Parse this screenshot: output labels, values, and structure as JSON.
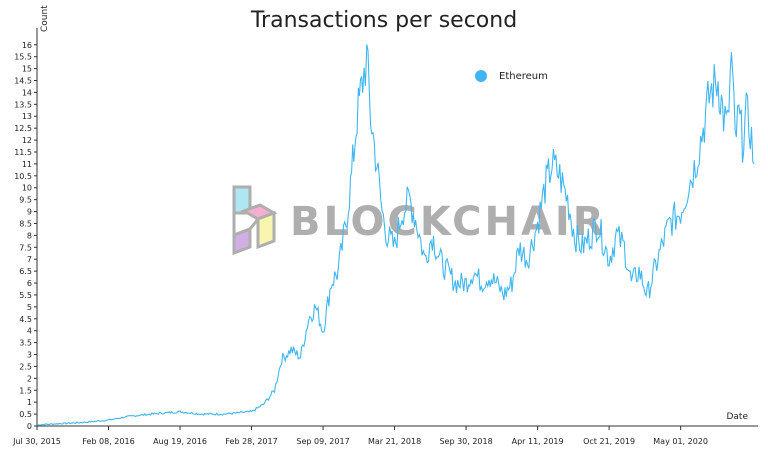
{
  "chart_data": {
    "type": "line",
    "title": "Transactions per second",
    "ylabel": "Count",
    "xlabel": "Date",
    "ylim": [
      0,
      16.2
    ],
    "y_ticks": [
      "0",
      "0.5",
      "1",
      "1.5",
      "2",
      "2.5",
      "3",
      "3.5",
      "4",
      "4.5",
      "5",
      "5.5",
      "6",
      "6.5",
      "7",
      "7.5",
      "8",
      "8.5",
      "9",
      "9.5",
      "10",
      "10.5",
      "11",
      "11.5",
      "12",
      "12.5",
      "13",
      "13.5",
      "14",
      "14.5",
      "15",
      "15.5",
      "16"
    ],
    "x_ticks": [
      "Jul 30, 2015",
      "Feb 08, 2016",
      "Aug 19, 2016",
      "Feb 28, 2017",
      "Sep 09, 2017",
      "Mar 21, 2018",
      "Sep 30, 2018",
      "Apr 11, 2019",
      "Oct 21, 2019",
      "May 01, 2020"
    ],
    "legend_position": "top-right",
    "series": [
      {
        "name": "Ethereum",
        "color": "#3fb6f2",
        "x": [
          "2015-07-30",
          "2015-10-01",
          "2015-12-01",
          "2016-02-08",
          "2016-04-01",
          "2016-06-01",
          "2016-08-19",
          "2016-10-15",
          "2016-12-15",
          "2017-02-28",
          "2017-04-01",
          "2017-05-01",
          "2017-05-20",
          "2017-06-15",
          "2017-07-10",
          "2017-08-01",
          "2017-08-20",
          "2017-09-09",
          "2017-10-01",
          "2017-10-20",
          "2017-11-10",
          "2017-11-25",
          "2017-12-10",
          "2017-12-25",
          "2018-01-05",
          "2018-01-15",
          "2018-02-01",
          "2018-02-15",
          "2018-03-01",
          "2018-03-21",
          "2018-04-10",
          "2018-05-01",
          "2018-05-20",
          "2018-06-10",
          "2018-07-01",
          "2018-07-20",
          "2018-08-10",
          "2018-09-01",
          "2018-09-30",
          "2018-10-20",
          "2018-11-10",
          "2018-12-01",
          "2018-12-20",
          "2019-01-10",
          "2019-02-01",
          "2019-02-20",
          "2019-03-15",
          "2019-04-11",
          "2019-05-01",
          "2019-05-20",
          "2019-06-10",
          "2019-07-01",
          "2019-07-20",
          "2019-08-10",
          "2019-09-01",
          "2019-09-20",
          "2019-10-21",
          "2019-11-10",
          "2019-12-01",
          "2019-12-20",
          "2020-01-10",
          "2020-02-01",
          "2020-02-20",
          "2020-03-10",
          "2020-04-01",
          "2020-05-01",
          "2020-05-20",
          "2020-06-10",
          "2020-07-01",
          "2020-07-20",
          "2020-08-10",
          "2020-08-25",
          "2020-09-05",
          "2020-09-15",
          "2020-09-25",
          "2020-10-05",
          "2020-10-15",
          "2020-10-25",
          "2020-11-05",
          "2020-11-15"
        ],
        "y": [
          0.05,
          0.1,
          0.15,
          0.25,
          0.4,
          0.5,
          0.6,
          0.5,
          0.5,
          0.6,
          0.9,
          1.5,
          2.8,
          3.2,
          2.9,
          4.5,
          5.0,
          4.0,
          6.0,
          6.5,
          8.5,
          10.5,
          13.0,
          14.5,
          15.5,
          13.0,
          11.0,
          9.0,
          8.0,
          7.5,
          9.0,
          9.5,
          8.5,
          7.0,
          8.0,
          7.0,
          6.5,
          6.0,
          6.0,
          6.5,
          6.0,
          6.3,
          6.0,
          5.5,
          6.0,
          7.5,
          7.0,
          8.5,
          10.0,
          11.0,
          10.5,
          9.5,
          8.0,
          7.5,
          8.0,
          8.5,
          7.0,
          8.0,
          7.5,
          6.0,
          6.5,
          5.5,
          6.5,
          7.5,
          8.5,
          9.0,
          10.0,
          11.0,
          12.5,
          14.0,
          14.5,
          13.0,
          12.5,
          15.5,
          12.0,
          13.0,
          12.0,
          13.0,
          12.5,
          11.0
        ]
      }
    ]
  },
  "watermark": {
    "text": "BLOCKCHAIR"
  }
}
